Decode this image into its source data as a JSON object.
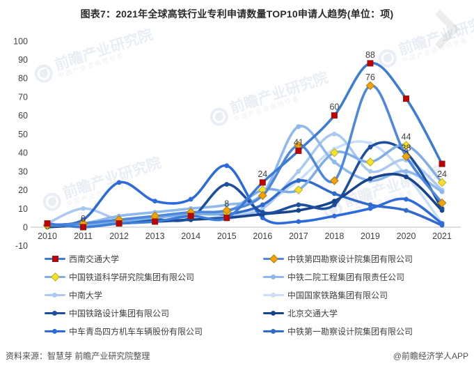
{
  "title": "图表7：2021年全球高铁行业专利申请数量TOP10申请人趋势(单位：项)",
  "footer": {
    "source": "资料来源：智慧芽 前瞻产业研究院整理",
    "credit": "@前瞻经济学人APP"
  },
  "watermark": {
    "name": "前瞻产业研究院",
    "tagline": "中国产业咨询领导者"
  },
  "chart_data": {
    "type": "line",
    "title": "图表7：2021年全球高铁行业专利申请数量TOP10申请人趋势(单位：项)",
    "xlabel": "",
    "ylabel": "",
    "x": [
      2010,
      2011,
      2012,
      2013,
      2014,
      2015,
      2016,
      2017,
      2018,
      2019,
      2020,
      2021
    ],
    "ylim": [
      -10,
      100
    ],
    "yticks": [
      -10,
      0,
      10,
      20,
      30,
      40,
      50,
      60,
      70,
      80,
      90,
      100
    ],
    "grid": false,
    "legend_position": "bottom-two-columns",
    "axis_color": "#bfbfbf",
    "tick_color": "#404040",
    "label_color": "#3f3f3f",
    "series": [
      {
        "name": "西南交通大学",
        "color": "#3c7cd6",
        "marker": "square",
        "marker_color": "#c00000",
        "marker_stroke": "#8e1a12",
        "values": [
          2,
          0,
          2,
          3,
          6,
          5,
          24,
          41,
          60,
          88,
          69,
          34
        ],
        "labels": {
          "2011": "0",
          "2016": "24",
          "2017": "41",
          "2018": "60",
          "2019": "88"
        }
      },
      {
        "name": "中铁第四勘察设计院集团有限公司",
        "color": "#4e88dc",
        "marker": "diamond",
        "marker_color": "#f0a30a",
        "marker_stroke": "#b97b06",
        "values": [
          1,
          2,
          4,
          6,
          8,
          9,
          17,
          44,
          25,
          76,
          38,
          13
        ],
        "labels": {
          "2019": "76",
          "2020": "38"
        }
      },
      {
        "name": "中国铁道科学研究院集团有限公司",
        "color": "#7fade6",
        "marker": "diamond",
        "marker_color": "#f5e32a",
        "marker_stroke": "#bfae1c",
        "values": [
          1,
          1,
          3,
          5,
          7,
          8,
          20,
          20,
          40,
          35,
          44,
          24
        ],
        "labels": {
          "2015": "8",
          "2020": "44",
          "2021": "24"
        }
      },
      {
        "name": "中铁二院工程集团有限责任公司",
        "color": "#8fb9ec",
        "marker": "circle",
        "marker_color": "#8fb9ec",
        "marker_stroke": "#8fb9ec",
        "values": [
          1,
          2,
          6,
          8,
          10,
          12,
          18,
          54,
          35,
          25,
          30,
          19
        ],
        "labels": {}
      },
      {
        "name": "中南大学",
        "color": "#abc9f0",
        "marker": "circle",
        "marker_color": "#abc9f0",
        "marker_stroke": "#abc9f0",
        "values": [
          2,
          10,
          4,
          3,
          4,
          6,
          10,
          30,
          50,
          30,
          36,
          20
        ],
        "labels": {}
      },
      {
        "name": "中国国家铁路集团有限公司",
        "color": "#c9def7",
        "marker": "circle",
        "marker_color": "#c9def7",
        "marker_stroke": "#c9def7",
        "values": [
          1,
          1,
          2,
          3,
          5,
          4,
          12,
          25,
          42,
          45,
          28,
          2
        ],
        "labels": {}
      },
      {
        "name": "中国铁路设计集团有限公司",
        "color": "#1d4f9e",
        "marker": "circle",
        "marker_color": "#1d4f9e",
        "marker_stroke": "#1d4f9e",
        "values": [
          1,
          2,
          3,
          4,
          5,
          23,
          8,
          12,
          12,
          43,
          40,
          10
        ],
        "labels": {}
      },
      {
        "name": "北京交通大学",
        "color": "#16438c",
        "marker": "circle",
        "marker_color": "#16438c",
        "marker_stroke": "#16438c",
        "values": [
          0,
          1,
          2,
          3,
          4,
          5,
          7,
          9,
          14,
          26,
          27,
          9
        ],
        "labels": {}
      },
      {
        "name": "中车青岛四方机车车辆股份有限公司",
        "color": "#2c6bd9",
        "marker": "circle",
        "marker_color": "#2c6bd9",
        "marker_stroke": "#2c6bd9",
        "values": [
          1,
          4,
          24,
          14,
          15,
          33,
          5,
          3,
          6,
          10,
          15,
          2
        ],
        "labels": {}
      },
      {
        "name": "中铁第一勘察设计院集团有限公司",
        "color": "#306bcc",
        "marker": "circle",
        "marker_color": "#306bcc",
        "marker_stroke": "#306bcc",
        "values": [
          1,
          2,
          3,
          5,
          8,
          7,
          12,
          25,
          18,
          12,
          9,
          1
        ],
        "labels": {}
      }
    ]
  }
}
